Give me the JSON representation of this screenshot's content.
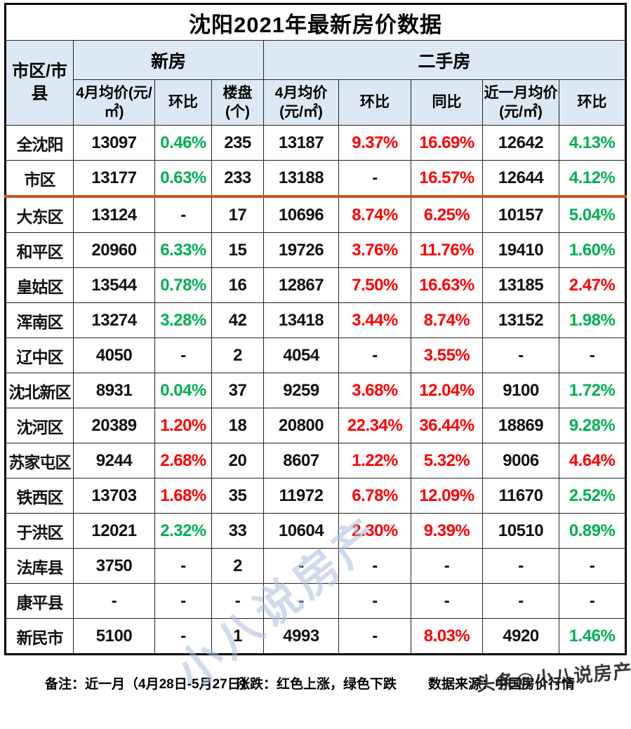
{
  "title": "沈阳2021年最新房价数据",
  "header": {
    "corner": "市区/市县",
    "group_new": "新房",
    "group_second": "二手房",
    "columns": [
      "4月均价(元/㎡)",
      "环比",
      "楼盘(个)",
      "4月均价(元/㎡)",
      "环比",
      "同比",
      "近一月均价(元/㎡)",
      "环比"
    ]
  },
  "chart_data": {
    "type": "table",
    "title": "沈阳2021年最新房价数据",
    "column_groups": [
      {
        "label": "新房",
        "span": 3
      },
      {
        "label": "二手房",
        "span": 5
      }
    ],
    "columns": [
      "市区/市县",
      "新房4月均价(元/㎡)",
      "新房环比",
      "楼盘(个)",
      "二手房4月均价(元/㎡)",
      "二手房环比",
      "二手房同比",
      "近一月均价(元/㎡)",
      "近一月环比"
    ],
    "divider_after_row": 1,
    "rows": [
      {
        "name": "全沈阳",
        "values": [
          "13097",
          "0.46%",
          "235",
          "13187",
          "9.37%",
          "16.69%",
          "12642",
          "4.13%"
        ],
        "colors": [
          "black",
          "green",
          "black",
          "black",
          "red",
          "red",
          "black",
          "green"
        ]
      },
      {
        "name": "市区",
        "values": [
          "13177",
          "0.63%",
          "233",
          "13188",
          "-",
          "16.57%",
          "12644",
          "4.12%"
        ],
        "colors": [
          "black",
          "green",
          "black",
          "black",
          "black",
          "red",
          "black",
          "green"
        ]
      },
      {
        "name": "大东区",
        "values": [
          "13124",
          "-",
          "17",
          "10696",
          "8.74%",
          "6.25%",
          "10157",
          "5.04%"
        ],
        "colors": [
          "black",
          "black",
          "black",
          "black",
          "red",
          "red",
          "black",
          "green"
        ]
      },
      {
        "name": "和平区",
        "values": [
          "20960",
          "6.33%",
          "15",
          "19726",
          "3.76%",
          "11.76%",
          "19410",
          "1.60%"
        ],
        "colors": [
          "black",
          "green",
          "black",
          "black",
          "red",
          "red",
          "black",
          "green"
        ]
      },
      {
        "name": "皇姑区",
        "values": [
          "13544",
          "0.78%",
          "16",
          "12867",
          "7.50%",
          "16.63%",
          "13185",
          "2.47%"
        ],
        "colors": [
          "black",
          "green",
          "black",
          "black",
          "red",
          "red",
          "black",
          "red"
        ]
      },
      {
        "name": "浑南区",
        "values": [
          "13274",
          "3.28%",
          "42",
          "13418",
          "3.44%",
          "8.74%",
          "13152",
          "1.98%"
        ],
        "colors": [
          "black",
          "green",
          "black",
          "black",
          "red",
          "red",
          "black",
          "green"
        ]
      },
      {
        "name": "辽中区",
        "values": [
          "4050",
          "-",
          "2",
          "4054",
          "-",
          "3.55%",
          "-",
          "-"
        ],
        "colors": [
          "black",
          "black",
          "black",
          "black",
          "black",
          "red",
          "black",
          "black"
        ]
      },
      {
        "name": "沈北新区",
        "values": [
          "8931",
          "0.04%",
          "37",
          "9259",
          "3.68%",
          "12.04%",
          "9100",
          "1.72%"
        ],
        "colors": [
          "black",
          "green",
          "black",
          "black",
          "red",
          "red",
          "black",
          "green"
        ]
      },
      {
        "name": "沈河区",
        "values": [
          "20389",
          "1.20%",
          "18",
          "20800",
          "22.34%",
          "36.44%",
          "18869",
          "9.28%"
        ],
        "colors": [
          "black",
          "red",
          "black",
          "black",
          "red",
          "red",
          "black",
          "green"
        ]
      },
      {
        "name": "苏家屯区",
        "values": [
          "9244",
          "2.68%",
          "20",
          "8607",
          "1.22%",
          "5.32%",
          "9006",
          "4.64%"
        ],
        "colors": [
          "black",
          "red",
          "black",
          "black",
          "red",
          "red",
          "black",
          "red"
        ]
      },
      {
        "name": "铁西区",
        "values": [
          "13703",
          "1.68%",
          "35",
          "11972",
          "6.78%",
          "12.09%",
          "11670",
          "2.52%"
        ],
        "colors": [
          "black",
          "red",
          "black",
          "black",
          "red",
          "red",
          "black",
          "green"
        ]
      },
      {
        "name": "于洪区",
        "values": [
          "12021",
          "2.32%",
          "33",
          "10604",
          "2.30%",
          "9.39%",
          "10510",
          "0.89%"
        ],
        "colors": [
          "black",
          "green",
          "black",
          "black",
          "red",
          "red",
          "black",
          "green"
        ]
      },
      {
        "name": "法库县",
        "values": [
          "3750",
          "-",
          "2",
          "-",
          "-",
          "-",
          "-",
          "-"
        ],
        "colors": [
          "black",
          "black",
          "black",
          "black",
          "black",
          "black",
          "black",
          "black"
        ]
      },
      {
        "name": "康平县",
        "values": [
          "-",
          "-",
          "-",
          "-",
          "-",
          "-",
          "-",
          "-"
        ],
        "colors": [
          "black",
          "black",
          "black",
          "black",
          "black",
          "black",
          "black",
          "black"
        ]
      },
      {
        "name": "新民市",
        "values": [
          "5100",
          "-",
          "1",
          "4993",
          "-",
          "8.03%",
          "4920",
          "1.46%"
        ],
        "colors": [
          "black",
          "black",
          "black",
          "black",
          "black",
          "red",
          "black",
          "green"
        ]
      }
    ]
  },
  "footer": {
    "note": "备注：近一月（4月28日-5月27日）",
    "legend": "涨跌：红色上涨，绿色下跌",
    "source": "数据来源：中国房价行情"
  },
  "watermarks": {
    "center": "小八说房产",
    "bottom_right": "头条@小八说房产"
  },
  "colors": {
    "up_red": "#fe0000",
    "down_green": "#00b050",
    "header_bg": "#dce9f4",
    "divider_orange": "#c4551c",
    "border": "#242424"
  }
}
